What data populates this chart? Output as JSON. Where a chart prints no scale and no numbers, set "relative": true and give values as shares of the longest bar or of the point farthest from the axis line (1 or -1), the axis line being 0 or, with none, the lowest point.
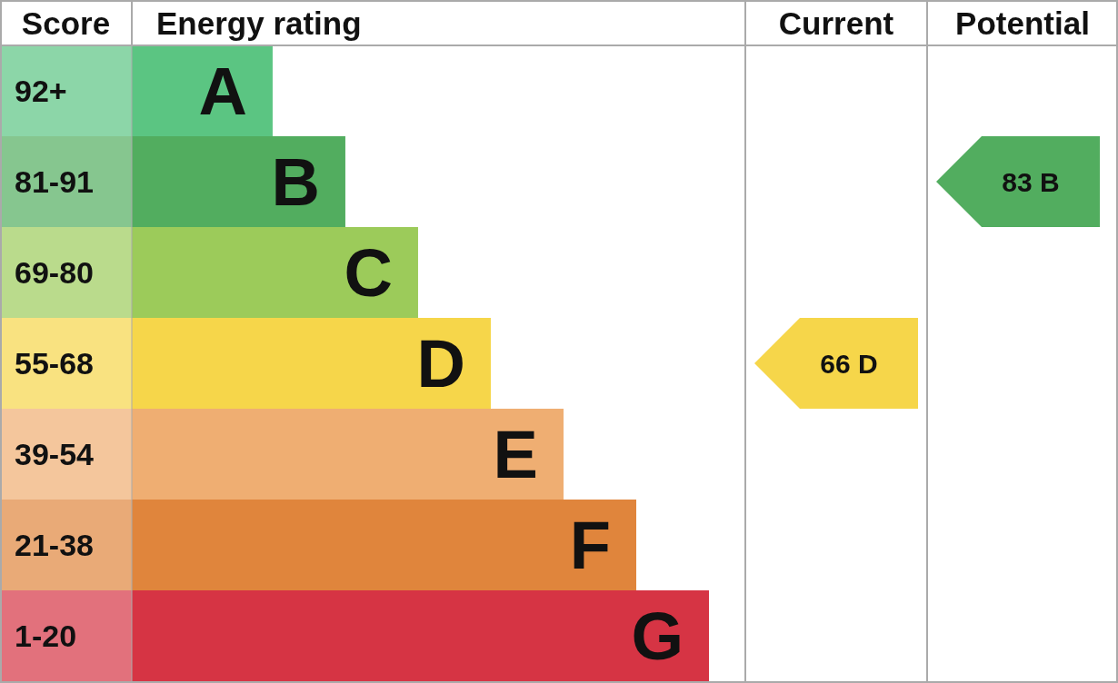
{
  "chart_data": {
    "type": "bar",
    "orientation": "horizontal",
    "relative": true,
    "categories": [
      "A",
      "B",
      "C",
      "D",
      "E",
      "F",
      "G"
    ],
    "values": [
      0.244,
      0.37,
      0.496,
      0.622,
      0.748,
      0.874,
      1
    ],
    "colors": [
      "#5bc582",
      "#52ad5f",
      "#9ccb5a",
      "#f6d64a",
      "#efae72",
      "#e0853c",
      "#d63444"
    ],
    "annotations": [
      "Score",
      "Energy rating",
      "Current",
      "Potential",
      "92+",
      "81-91",
      "69-80",
      "55-68",
      "39-54",
      "21-38",
      "1-20",
      "66 D",
      "83 B"
    ]
  }
}
